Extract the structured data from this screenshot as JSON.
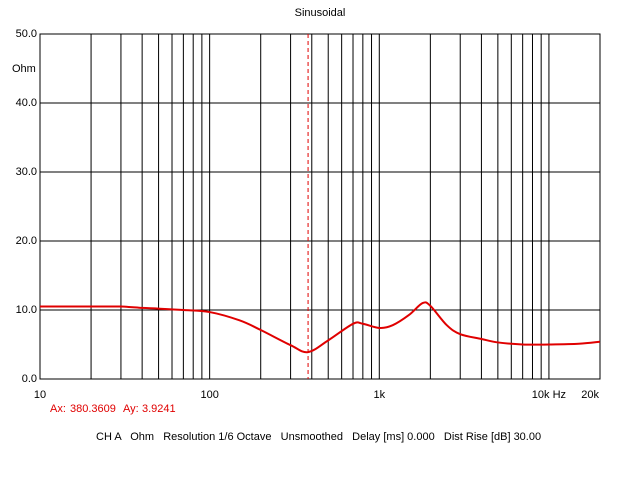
{
  "chart_data": {
    "type": "line",
    "title": "Sinusoidal",
    "y_unit": "Ohm",
    "x": [
      10,
      20,
      30,
      40,
      50,
      70,
      100,
      150,
      200,
      300,
      380,
      500,
      700,
      800,
      1000,
      1200,
      1500,
      1800,
      2000,
      2500,
      3000,
      4000,
      5000,
      7000,
      10000,
      15000,
      20000
    ],
    "values": [
      10.5,
      10.5,
      10.5,
      10.3,
      10.2,
      10.0,
      9.7,
      8.5,
      7.1,
      4.9,
      3.9,
      5.6,
      8.0,
      8.0,
      7.4,
      7.8,
      9.3,
      11.0,
      10.6,
      7.8,
      6.5,
      5.8,
      5.3,
      5.0,
      5.0,
      5.1,
      5.4
    ],
    "color": "#e00000",
    "xscale": "log",
    "xlim": [
      10,
      20000
    ],
    "ylim": [
      0,
      50
    ],
    "xticks": [
      10,
      100,
      {
        "value": 1000,
        "label": "1k"
      },
      {
        "value": 10000,
        "label": "10k Hz"
      },
      {
        "value": 20000,
        "label": "20k"
      }
    ],
    "xminor_ticks": [
      20,
      30,
      40,
      50,
      60,
      70,
      80,
      90,
      200,
      300,
      400,
      500,
      600,
      700,
      800,
      900,
      2000,
      3000,
      4000,
      5000,
      6000,
      7000,
      8000,
      9000
    ],
    "yticks": [
      {
        "value": 0,
        "label": "0.0"
      },
      {
        "value": 10,
        "label": "10.0"
      },
      {
        "value": 20,
        "label": "20.0"
      },
      {
        "value": 30,
        "label": "30.0"
      },
      {
        "value": 40,
        "label": "40.0"
      },
      {
        "value": 50,
        "label": "50.0"
      }
    ],
    "grid": true,
    "cursor": {
      "x_label": "Ax:",
      "x": 380.3609,
      "y_label": "Ay:",
      "y": 3.9241,
      "color": "#e00000"
    },
    "status": "CH A   Ohm   Resolution 1/6 Octave   Unsmoothed   Delay [ms] 0.000   Dist Rise [dB] 30.00"
  }
}
